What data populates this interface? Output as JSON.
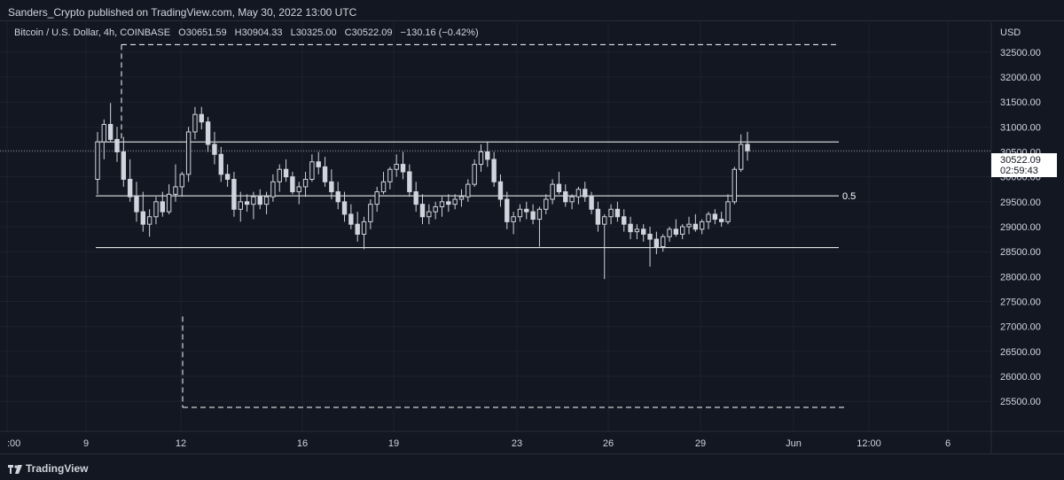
{
  "header": {
    "published": "Sanders_Crypto published on TradingView.com, May 30, 2022 13:00 UTC"
  },
  "legend": {
    "symbol": "Bitcoin / U.S. Dollar, 4h, COINBASE",
    "o_label": "O",
    "o_value": "30651.59",
    "h_label": "H",
    "h_value": "30904.33",
    "l_label": "L",
    "l_value": "30325.00",
    "c_label": "C",
    "c_value": "30522.09",
    "change": "−130.16 (−0.42%)"
  },
  "currency": "USD",
  "price_tag": {
    "price": "30522.09",
    "countdown": "02:59:43"
  },
  "footer": {
    "brand": "TradingView"
  },
  "colors": {
    "background": "#131722",
    "candle": "#d1d4dc",
    "grid": "#1e222d",
    "level_line": "#ffffff"
  },
  "chart_data": {
    "type": "candlestick",
    "x_tick_labels": [
      ":00",
      "9",
      "12",
      "16",
      "19",
      "23",
      "26",
      "29",
      "Jun",
      "12:00",
      "6"
    ],
    "y_tick_labels": [
      "25500.00",
      "26000.00",
      "26500.00",
      "27000.00",
      "27500.00",
      "28000.00",
      "28500.00",
      "29000.00",
      "29500.00",
      "30000.00",
      "30500.00",
      "31000.00",
      "31500.00",
      "32000.00",
      "32500.00"
    ],
    "y_ticks": [
      25500,
      26000,
      26500,
      27000,
      27500,
      28000,
      28500,
      29000,
      29500,
      30000,
      30500,
      31000,
      31500,
      32000,
      32500
    ],
    "ylim": [
      24900,
      33100
    ],
    "levels": [
      {
        "price": 30700,
        "style": "solid",
        "label": ""
      },
      {
        "price": 29620,
        "style": "solid",
        "label": "0.5"
      },
      {
        "price": 28580,
        "style": "solid",
        "label": ""
      },
      {
        "price": 32650,
        "style": "dashed",
        "label": ""
      },
      {
        "price": 25380,
        "style": "dashed",
        "label": ""
      }
    ],
    "last_price": 30522.09,
    "candles": [
      [
        29950,
        30900,
        29650,
        30700
      ],
      [
        30700,
        31150,
        30350,
        31050
      ],
      [
        31050,
        31480,
        30700,
        30750
      ],
      [
        30750,
        31000,
        30300,
        30500
      ],
      [
        30500,
        30800,
        29800,
        29950
      ],
      [
        29950,
        30350,
        29500,
        29600
      ],
      [
        29600,
        29900,
        29100,
        29300
      ],
      [
        29300,
        29700,
        28900,
        29050
      ],
      [
        29050,
        29350,
        28800,
        29200
      ],
      [
        29200,
        29600,
        29050,
        29500
      ],
      [
        29500,
        29700,
        29200,
        29300
      ],
      [
        29300,
        29850,
        29250,
        29650
      ],
      [
        29650,
        30250,
        29500,
        29800
      ],
      [
        29800,
        30100,
        29600,
        30050
      ],
      [
        30050,
        31000,
        29900,
        30900
      ],
      [
        30900,
        31400,
        30750,
        31250
      ],
      [
        31250,
        31400,
        30950,
        31100
      ],
      [
        31100,
        31200,
        30500,
        30650
      ],
      [
        30650,
        30900,
        30250,
        30450
      ],
      [
        30450,
        30600,
        29900,
        30050
      ],
      [
        30050,
        30250,
        29800,
        29950
      ],
      [
        29950,
        30100,
        29200,
        29350
      ],
      [
        29350,
        29700,
        29100,
        29500
      ],
      [
        29500,
        29650,
        29300,
        29450
      ],
      [
        29450,
        29700,
        29150,
        29600
      ],
      [
        29600,
        29750,
        29350,
        29450
      ],
      [
        29450,
        29700,
        29250,
        29600
      ],
      [
        29600,
        30050,
        29500,
        29900
      ],
      [
        29900,
        30250,
        29700,
        30150
      ],
      [
        30150,
        30350,
        29900,
        30000
      ],
      [
        30000,
        30100,
        29650,
        29700
      ],
      [
        29700,
        29900,
        29450,
        29800
      ],
      [
        29800,
        30100,
        29600,
        29950
      ],
      [
        29950,
        30450,
        29900,
        30300
      ],
      [
        30300,
        30500,
        30050,
        30200
      ],
      [
        30200,
        30400,
        29800,
        29900
      ],
      [
        29900,
        30150,
        29550,
        29700
      ],
      [
        29700,
        29900,
        29350,
        29500
      ],
      [
        29500,
        29700,
        29100,
        29250
      ],
      [
        29250,
        29450,
        28950,
        29050
      ],
      [
        29050,
        29300,
        28700,
        28850
      ],
      [
        28850,
        29200,
        28550,
        29100
      ],
      [
        29100,
        29550,
        28950,
        29450
      ],
      [
        29450,
        29800,
        29300,
        29700
      ],
      [
        29700,
        30100,
        29650,
        29900
      ],
      [
        29900,
        30200,
        29750,
        30150
      ],
      [
        30150,
        30450,
        30000,
        30250
      ],
      [
        30250,
        30500,
        29950,
        30100
      ],
      [
        30100,
        30250,
        29600,
        29700
      ],
      [
        29700,
        29900,
        29300,
        29450
      ],
      [
        29450,
        29650,
        29050,
        29200
      ],
      [
        29200,
        29450,
        29050,
        29300
      ],
      [
        29300,
        29500,
        29150,
        29400
      ],
      [
        29400,
        29600,
        29200,
        29500
      ],
      [
        29500,
        29650,
        29300,
        29450
      ],
      [
        29450,
        29650,
        29350,
        29550
      ],
      [
        29550,
        29750,
        29400,
        29600
      ],
      [
        29600,
        29950,
        29500,
        29850
      ],
      [
        29850,
        30350,
        29800,
        30250
      ],
      [
        30250,
        30650,
        30100,
        30500
      ],
      [
        30500,
        30700,
        30200,
        30350
      ],
      [
        30350,
        30500,
        29800,
        29900
      ],
      [
        29900,
        30050,
        29400,
        29550
      ],
      [
        29550,
        29700,
        28950,
        29100
      ],
      [
        29100,
        29300,
        28850,
        29200
      ],
      [
        29200,
        29450,
        29100,
        29350
      ],
      [
        29350,
        29500,
        29150,
        29300
      ],
      [
        29300,
        29450,
        29050,
        29150
      ],
      [
        29150,
        29400,
        28600,
        29350
      ],
      [
        29350,
        29650,
        29250,
        29550
      ],
      [
        29550,
        29950,
        29450,
        29850
      ],
      [
        29850,
        30100,
        29650,
        29700
      ],
      [
        29700,
        29850,
        29400,
        29500
      ],
      [
        29500,
        29650,
        29350,
        29600
      ],
      [
        29600,
        29800,
        29450,
        29750
      ],
      [
        29750,
        29900,
        29500,
        29600
      ],
      [
        29600,
        29700,
        29250,
        29350
      ],
      [
        29350,
        29500,
        28900,
        29050
      ],
      [
        29050,
        29250,
        27950,
        29200
      ],
      [
        29200,
        29450,
        29050,
        29350
      ],
      [
        29350,
        29500,
        29100,
        29200
      ],
      [
        29200,
        29350,
        28900,
        29050
      ],
      [
        29050,
        29200,
        28750,
        28900
      ],
      [
        28900,
        29050,
        28750,
        28950
      ],
      [
        28950,
        29050,
        28700,
        28850
      ],
      [
        28850,
        29000,
        28200,
        28750
      ],
      [
        28750,
        28900,
        28450,
        28600
      ],
      [
        28600,
        28850,
        28500,
        28800
      ],
      [
        28800,
        29000,
        28700,
        28950
      ],
      [
        28950,
        29150,
        28800,
        28850
      ],
      [
        28850,
        29050,
        28750,
        29000
      ],
      [
        29000,
        29200,
        28850,
        29050
      ],
      [
        29050,
        29250,
        28900,
        28950
      ],
      [
        28950,
        29150,
        28850,
        29100
      ],
      [
        29100,
        29300,
        28950,
        29250
      ],
      [
        29250,
        29350,
        29050,
        29150
      ],
      [
        29150,
        29300,
        29000,
        29100
      ],
      [
        29100,
        29650,
        29050,
        29500
      ],
      [
        29500,
        30200,
        29450,
        30150
      ],
      [
        30150,
        30850,
        30100,
        30650
      ],
      [
        30650,
        30904,
        30325,
        30522
      ]
    ]
  }
}
